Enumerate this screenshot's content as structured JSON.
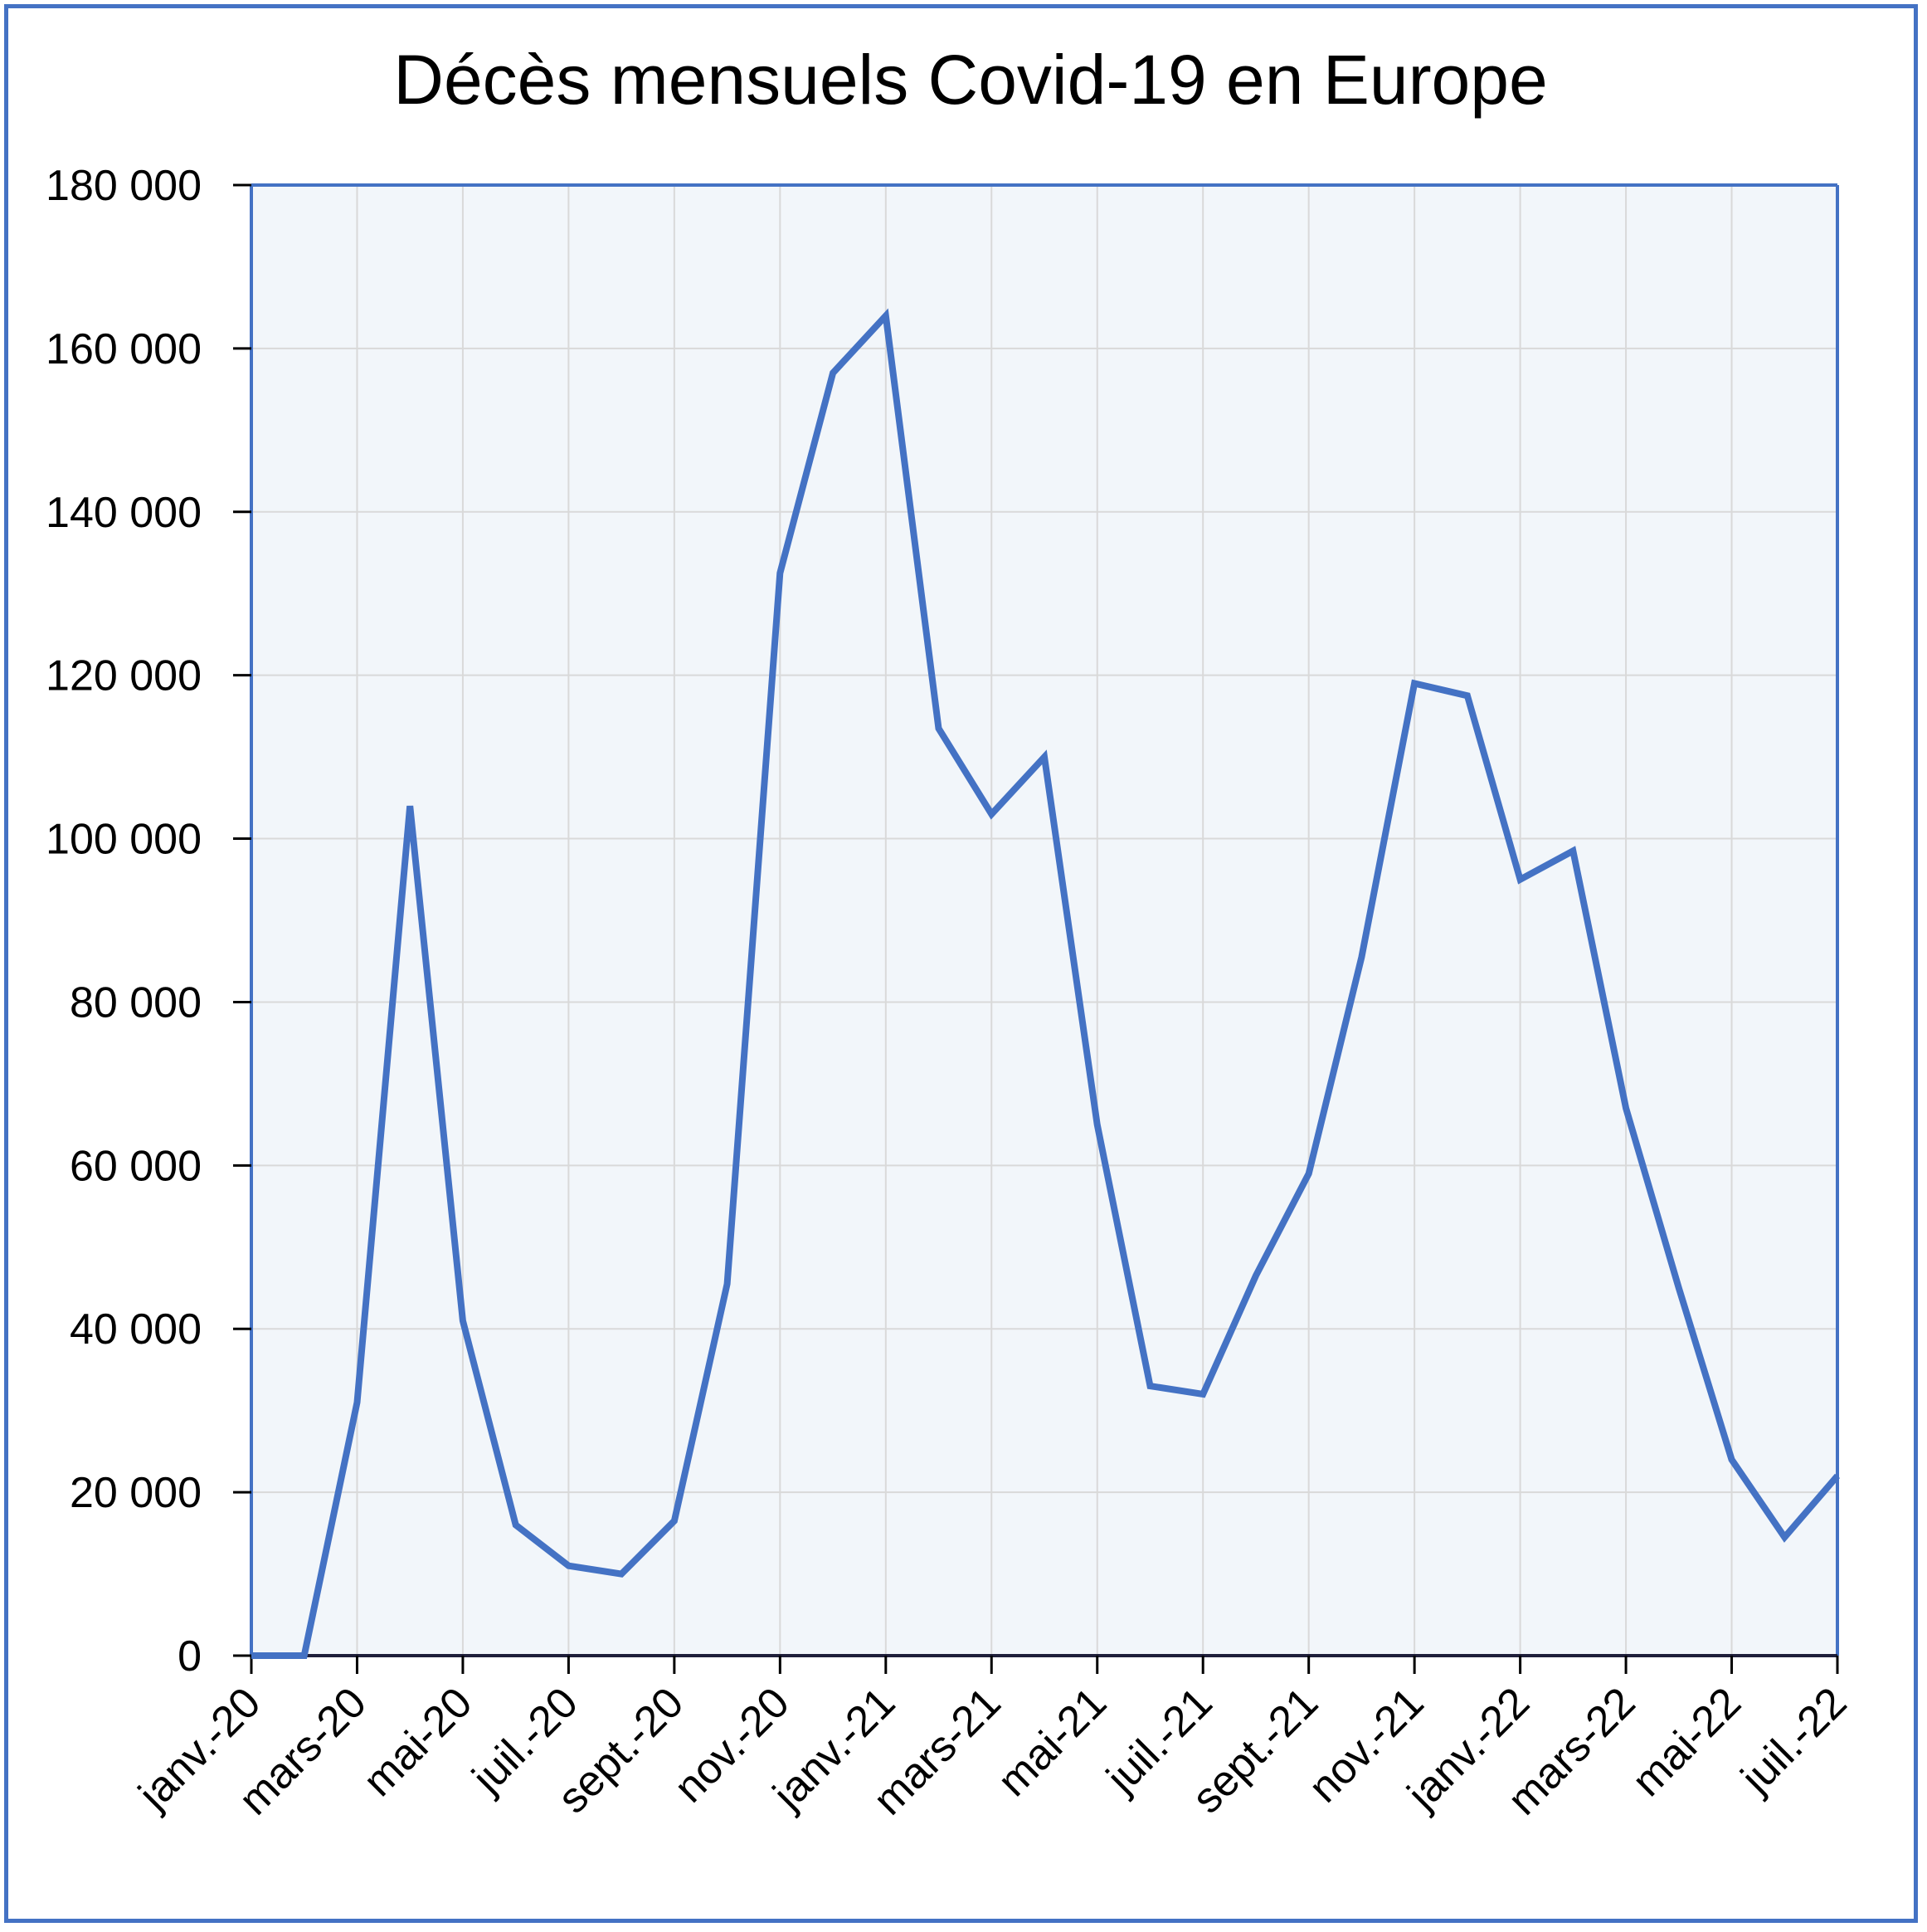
{
  "chart_data": {
    "type": "line",
    "title": "Décès mensuels Covid-19 en Europe",
    "xlabel": "",
    "ylabel": "",
    "ylim": [
      0,
      180000
    ],
    "y_ticks": [
      "0",
      "20 000",
      "40 000",
      "60 000",
      "80 000",
      "100 000",
      "120 000",
      "140 000",
      "160 000",
      "180 000"
    ],
    "x_tick_labels": [
      "janv.-20",
      "mars-20",
      "mai-20",
      "juil.-20",
      "sept.-20",
      "nov.-20",
      "janv.-21",
      "mars-21",
      "mai-21",
      "juil.-21",
      "sept.-21",
      "nov.-21",
      "janv.-22",
      "mars-22",
      "mai-22",
      "juil.-22"
    ],
    "grid": true,
    "legend": "none",
    "colors": {
      "line": "#4472C4",
      "plot_bg": "#F2F6FA",
      "grid": "#D9D9D9",
      "frame": "#4472C4"
    },
    "series": [
      {
        "x": [
          "janv.-20",
          "févr.-20",
          "mars-20",
          "avr.-20",
          "mai-20",
          "juin-20",
          "juil.-20",
          "août-20",
          "sept.-20",
          "oct.-20",
          "nov.-20",
          "déc.-20",
          "janv.-21",
          "févr.-21",
          "mars-21",
          "avr.-21",
          "mai-21",
          "juin-21",
          "juil.-21",
          "août-21",
          "sept.-21",
          "oct.-21",
          "nov.-21",
          "déc.-21",
          "janv.-22",
          "févr.-22",
          "mars-22",
          "avr.-22",
          "mai-22",
          "juin-22",
          "juil.-22"
        ],
        "values": [
          0,
          0,
          31000,
          104000,
          41000,
          16000,
          11000,
          10000,
          16500,
          45500,
          132500,
          157000,
          164000,
          113500,
          103000,
          110000,
          65000,
          33000,
          32000,
          46500,
          59000,
          85500,
          119000,
          117500,
          95000,
          98500,
          67000,
          45000,
          24000,
          14500,
          22000
        ]
      }
    ]
  }
}
